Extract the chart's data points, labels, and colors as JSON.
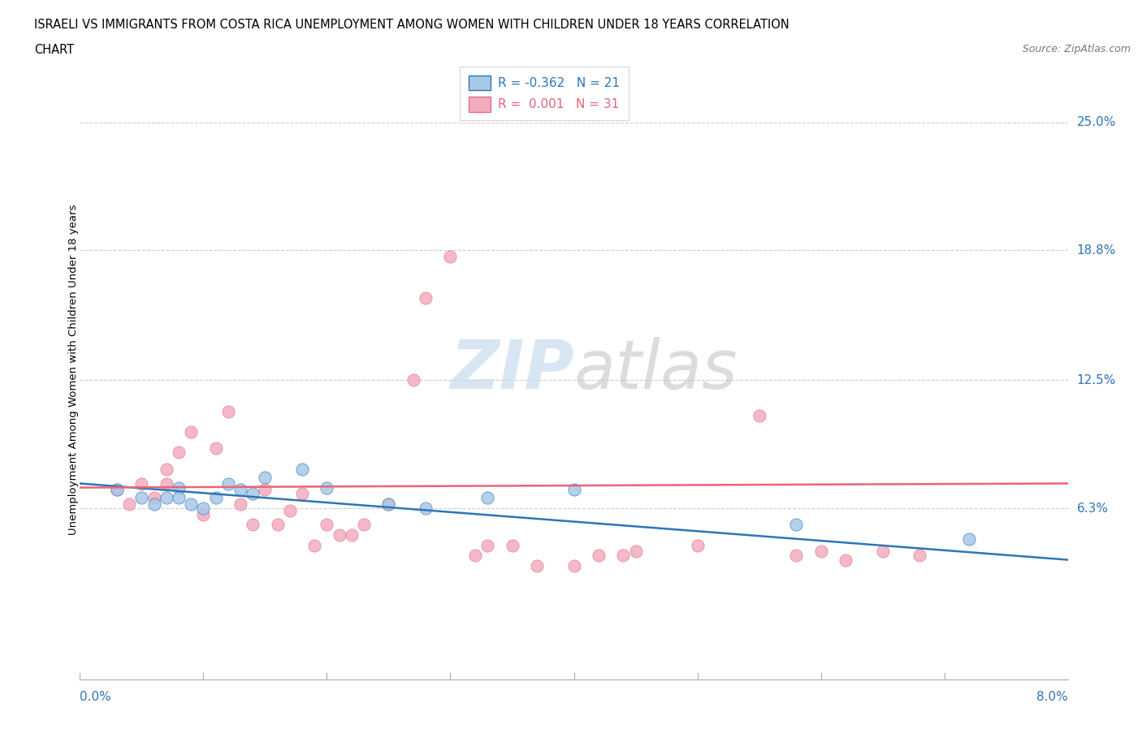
{
  "title_line1": "ISRAELI VS IMMIGRANTS FROM COSTA RICA UNEMPLOYMENT AMONG WOMEN WITH CHILDREN UNDER 18 YEARS CORRELATION",
  "title_line2": "CHART",
  "source": "Source: ZipAtlas.com",
  "ylabel": "Unemployment Among Women with Children Under 18 years",
  "ytick_values": [
    0.25,
    0.188,
    0.125,
    0.063
  ],
  "ytick_labels": [
    "25.0%",
    "18.8%",
    "12.5%",
    "6.3%"
  ],
  "xmin": 0.0,
  "xmax": 0.08,
  "ymin": -0.02,
  "ymax": 0.28,
  "watermark_zip": "ZIP",
  "watermark_atlas": "atlas",
  "color_israeli": "#A8C8E8",
  "color_cr": "#F4ACBE",
  "color_israeli_dark": "#2E75B6",
  "color_cr_dark": "#E07090",
  "color_cr_line": "#E8647A",
  "israeli_x": [
    0.003,
    0.005,
    0.006,
    0.007,
    0.008,
    0.008,
    0.009,
    0.01,
    0.011,
    0.012,
    0.013,
    0.014,
    0.015,
    0.018,
    0.02,
    0.025,
    0.028,
    0.033,
    0.04,
    0.058,
    0.072
  ],
  "israeli_y": [
    0.072,
    0.068,
    0.065,
    0.068,
    0.073,
    0.068,
    0.065,
    0.063,
    0.068,
    0.075,
    0.072,
    0.07,
    0.078,
    0.082,
    0.073,
    0.065,
    0.063,
    0.068,
    0.072,
    0.055,
    0.048
  ],
  "cr_x": [
    0.003,
    0.004,
    0.005,
    0.006,
    0.007,
    0.007,
    0.008,
    0.009,
    0.01,
    0.011,
    0.012,
    0.013,
    0.014,
    0.015,
    0.016,
    0.017,
    0.018,
    0.019,
    0.02,
    0.021,
    0.022,
    0.023,
    0.025,
    0.027,
    0.028,
    0.03,
    0.032,
    0.033,
    0.035,
    0.037,
    0.04,
    0.042,
    0.044,
    0.045,
    0.05,
    0.055,
    0.058,
    0.06,
    0.062,
    0.065,
    0.068
  ],
  "cr_y": [
    0.072,
    0.065,
    0.075,
    0.068,
    0.075,
    0.082,
    0.09,
    0.1,
    0.06,
    0.092,
    0.11,
    0.065,
    0.055,
    0.072,
    0.055,
    0.062,
    0.07,
    0.045,
    0.055,
    0.05,
    0.05,
    0.055,
    0.065,
    0.125,
    0.165,
    0.185,
    0.04,
    0.045,
    0.045,
    0.035,
    0.035,
    0.04,
    0.04,
    0.042,
    0.045,
    0.108,
    0.04,
    0.042,
    0.038,
    0.042,
    0.04
  ],
  "israeli_trend_x": [
    0.0,
    0.08
  ],
  "israeli_trend_y_start": 0.075,
  "israeli_trend_y_end": 0.038,
  "cr_trend_y_start": 0.073,
  "cr_trend_y_end": 0.075
}
